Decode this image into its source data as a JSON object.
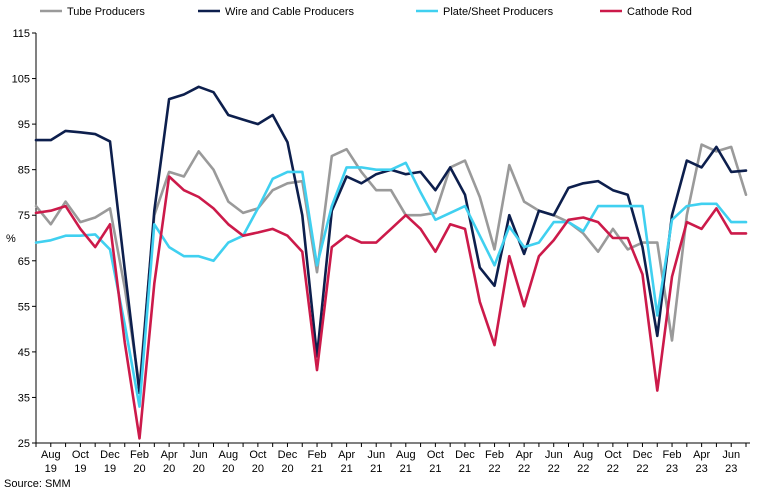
{
  "chart_data": {
    "type": "line",
    "ylabel": "%",
    "ylim": [
      25,
      115
    ],
    "yticks": [
      25,
      35,
      45,
      55,
      65,
      75,
      85,
      95,
      105,
      115
    ],
    "x_tick_labels": [
      {
        "month": "Aug",
        "year": "19"
      },
      {
        "month": "Oct",
        "year": "19"
      },
      {
        "month": "Dec",
        "year": "19"
      },
      {
        "month": "Feb",
        "year": "20"
      },
      {
        "month": "Apr",
        "year": "20"
      },
      {
        "month": "Jun",
        "year": "20"
      },
      {
        "month": "Aug",
        "year": "20"
      },
      {
        "month": "Oct",
        "year": "20"
      },
      {
        "month": "Dec",
        "year": "20"
      },
      {
        "month": "Feb",
        "year": "21"
      },
      {
        "month": "Apr",
        "year": "21"
      },
      {
        "month": "Jun",
        "year": "21"
      },
      {
        "month": "Aug",
        "year": "21"
      },
      {
        "month": "Oct",
        "year": "21"
      },
      {
        "month": "Dec",
        "year": "21"
      },
      {
        "month": "Feb",
        "year": "22"
      },
      {
        "month": "Apr",
        "year": "22"
      },
      {
        "month": "Jun",
        "year": "22"
      },
      {
        "month": "Aug",
        "year": "22"
      },
      {
        "month": "Oct",
        "year": "22"
      },
      {
        "month": "Dec",
        "year": "22"
      },
      {
        "month": "Feb",
        "year": "23"
      },
      {
        "month": "Apr",
        "year": "23"
      },
      {
        "month": "Jun",
        "year": "23"
      }
    ],
    "x": [
      "2019-07",
      "2019-08",
      "2019-09",
      "2019-10",
      "2019-11",
      "2019-12",
      "2020-01",
      "2020-02",
      "2020-03",
      "2020-04",
      "2020-05",
      "2020-06",
      "2020-07",
      "2020-08",
      "2020-09",
      "2020-10",
      "2020-11",
      "2020-12",
      "2021-01",
      "2021-02",
      "2021-03",
      "2021-04",
      "2021-05",
      "2021-06",
      "2021-07",
      "2021-08",
      "2021-09",
      "2021-10",
      "2021-11",
      "2021-12",
      "2022-01",
      "2022-02",
      "2022-03",
      "2022-04",
      "2022-05",
      "2022-06",
      "2022-07",
      "2022-08",
      "2022-09",
      "2022-10",
      "2022-11",
      "2022-12",
      "2023-01",
      "2023-02",
      "2023-03",
      "2023-04",
      "2023-05",
      "2023-06",
      "2023-07"
    ],
    "series": [
      {
        "name": "Tube Producers",
        "color": "#9a9a9a",
        "values": [
          77,
          73,
          78,
          73.5,
          74.5,
          76.5,
          59,
          37.5,
          75,
          84.5,
          83.5,
          89,
          85,
          78,
          75.5,
          76.5,
          80.5,
          82,
          82.5,
          62.5,
          88,
          89.5,
          84.5,
          80.5,
          80.5,
          75,
          75,
          75.5,
          85.5,
          87,
          79,
          67.5,
          86,
          78,
          76,
          75,
          73.5,
          71,
          67,
          72,
          67.5,
          69,
          69,
          47.5,
          75,
          90.5,
          89,
          90,
          79.5
        ]
      },
      {
        "name": "Wire and Cable Producers",
        "color": "#0d1f4d",
        "values": [
          91.5,
          91.5,
          93.5,
          93.2,
          92.8,
          91.2,
          63,
          36,
          76,
          100.5,
          101.5,
          103.2,
          102,
          97,
          96,
          95,
          97,
          91,
          75,
          44,
          76,
          83.5,
          82,
          84,
          85,
          84,
          84.5,
          80.5,
          85.5,
          79.5,
          63.5,
          59.5,
          75,
          66.5,
          76,
          75,
          81,
          82,
          82.5,
          80.5,
          79.5,
          68,
          48.5,
          75,
          87,
          85.5,
          90,
          84.5,
          84.8
        ]
      },
      {
        "name": "Plate/Sheet Producers",
        "color": "#40d0f0",
        "values": [
          69,
          69.5,
          70.5,
          70.5,
          70.8,
          67.5,
          51,
          33,
          73,
          68,
          66,
          66,
          65,
          69,
          70.5,
          76.5,
          83,
          84.5,
          84.5,
          64,
          77,
          85.5,
          85.5,
          85,
          85,
          86.5,
          80,
          74,
          75.5,
          77,
          70.5,
          64,
          72.5,
          68,
          69,
          73.5,
          73.5,
          71.5,
          77,
          77,
          77,
          77,
          53,
          74,
          77,
          77.5,
          77.5,
          73.5,
          73.5
        ]
      },
      {
        "name": "Cathode Rod",
        "color": "#cc1a4a",
        "values": [
          75.5,
          76,
          77,
          72,
          68,
          73,
          47,
          26,
          60,
          83.5,
          80.5,
          79,
          76.5,
          73,
          70.5,
          71.2,
          72,
          70.5,
          67,
          41,
          68,
          70.5,
          69,
          69,
          72,
          75,
          72,
          67,
          73,
          72,
          56,
          46.5,
          66,
          55,
          66,
          69.5,
          74,
          74.5,
          73.5,
          70,
          70,
          62,
          36.5,
          61.5,
          73.5,
          72,
          76.5,
          71,
          71
        ]
      }
    ]
  },
  "source": "Source: SMM"
}
